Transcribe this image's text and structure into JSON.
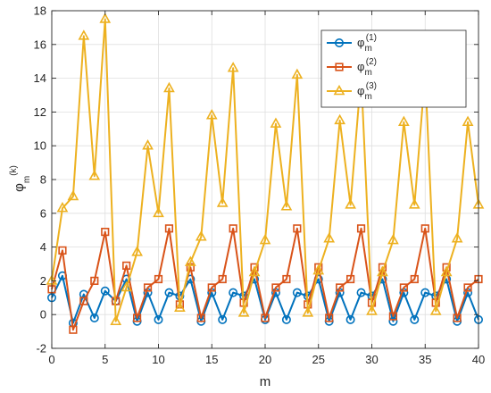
{
  "chart_data": {
    "type": "line",
    "title": "",
    "xlabel": "m",
    "ylabel": {
      "base": "φ",
      "sub": "m",
      "sup": "(k)"
    },
    "xlim": [
      0,
      40
    ],
    "ylim": [
      -2,
      18
    ],
    "xticks": [
      0,
      5,
      10,
      15,
      20,
      25,
      30,
      35,
      40
    ],
    "yticks": [
      -2,
      0,
      2,
      4,
      6,
      8,
      10,
      12,
      14,
      16,
      18
    ],
    "grid": true,
    "legend_position": "top-right",
    "x": [
      0,
      1,
      2,
      3,
      4,
      5,
      6,
      7,
      8,
      9,
      10,
      11,
      12,
      13,
      14,
      15,
      16,
      17,
      18,
      19,
      20,
      21,
      22,
      23,
      24,
      25,
      26,
      27,
      28,
      29,
      30,
      31,
      32,
      33,
      34,
      35,
      36,
      37,
      38,
      39,
      40
    ],
    "series": [
      {
        "name": {
          "base": "φ",
          "sub": "m",
          "sup": "(1)"
        },
        "color": "#0072BD",
        "marker": "circle",
        "values": [
          1.0,
          2.3,
          -0.5,
          1.2,
          -0.2,
          1.4,
          0.8,
          2.1,
          -0.4,
          1.3,
          -0.3,
          1.3,
          1.1,
          2.1,
          -0.4,
          1.3,
          -0.3,
          1.3,
          1.1,
          2.1,
          -0.3,
          1.3,
          -0.3,
          1.3,
          1.1,
          2.1,
          -0.4,
          1.3,
          -0.3,
          1.3,
          1.1,
          2.1,
          -0.4,
          1.3,
          -0.3,
          1.3,
          1.1,
          2.1,
          -0.4,
          1.3,
          -0.3
        ]
      },
      {
        "name": {
          "base": "φ",
          "sub": "m",
          "sup": "(2)"
        },
        "color": "#D95319",
        "marker": "square",
        "values": [
          1.5,
          3.8,
          -0.9,
          0.8,
          2.0,
          4.9,
          0.8,
          2.9,
          -0.2,
          1.6,
          2.1,
          5.1,
          0.6,
          2.8,
          -0.2,
          1.6,
          2.1,
          5.1,
          0.7,
          2.8,
          -0.2,
          1.6,
          2.1,
          5.1,
          0.6,
          2.8,
          -0.2,
          1.6,
          2.1,
          5.1,
          0.7,
          2.8,
          -0.1,
          1.6,
          2.1,
          5.1,
          0.7,
          2.8,
          -0.2,
          1.6,
          2.1
        ]
      },
      {
        "name": {
          "base": "φ",
          "sub": "m",
          "sup": "(3)"
        },
        "color": "#EDB120",
        "marker": "triangle",
        "values": [
          2.0,
          6.3,
          7.0,
          16.5,
          8.2,
          17.5,
          -0.4,
          1.6,
          3.7,
          10.0,
          6.0,
          13.4,
          0.4,
          3.1,
          4.6,
          11.8,
          6.6,
          14.6,
          0.1,
          2.5,
          4.4,
          11.3,
          6.4,
          14.2,
          0.1,
          2.6,
          4.5,
          11.5,
          6.5,
          14.2,
          0.2,
          2.5,
          4.4,
          11.4,
          6.5,
          14.3,
          0.2,
          2.5,
          4.5,
          11.4,
          6.5
        ]
      }
    ]
  }
}
